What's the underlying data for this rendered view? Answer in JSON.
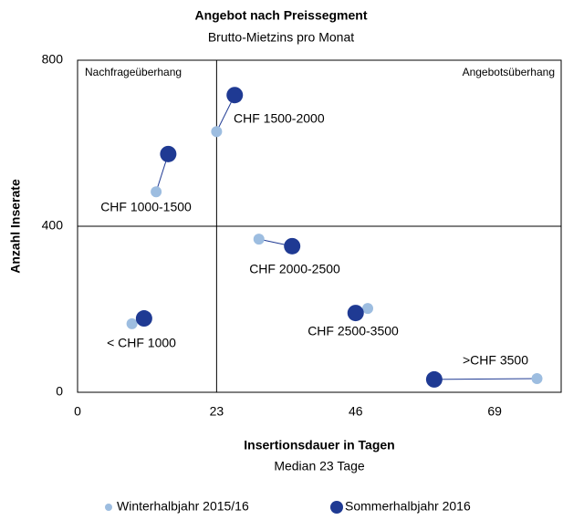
{
  "chart_data": {
    "type": "scatter",
    "title": "Angebot nach Preissegment",
    "subtitle": "Brutto-Mietzins pro Monat",
    "x_label": "Insertionsdauer in Tagen",
    "x_sublabel": "Median 23 Tage",
    "y_label": "Anzahl Inserate",
    "annotations": [
      "Nachfrageüberhang",
      "Angebotsüberhang"
    ],
    "categories": [
      "CHF 1500-2000",
      "CHF 1000-1500",
      "CHF 2000-2500",
      "CHF 2500-3500",
      "< CHF 1000",
      ">CHF 3500"
    ],
    "series": [
      {
        "name": "Winterhalbjahr 2015/16",
        "color": "#9dbde0",
        "x": [
          23,
          13,
          30,
          48,
          9,
          76
        ],
        "values": [
          628,
          483,
          369,
          202,
          165,
          33
        ]
      },
      {
        "name": "Sommerhalbjahr 2016",
        "color": "#1f3a93",
        "x": [
          26,
          15,
          35.5,
          46,
          11,
          59
        ],
        "values": [
          716,
          574,
          352,
          191,
          178,
          31
        ]
      }
    ],
    "reference_lines": {
      "x": 23,
      "y": 400
    },
    "xlim": [
      0,
      80
    ],
    "xticks": [
      0,
      23,
      46,
      69
    ],
    "ylim": [
      0,
      800
    ],
    "yticks": [
      0,
      400,
      800
    ],
    "legend": "bottom"
  }
}
